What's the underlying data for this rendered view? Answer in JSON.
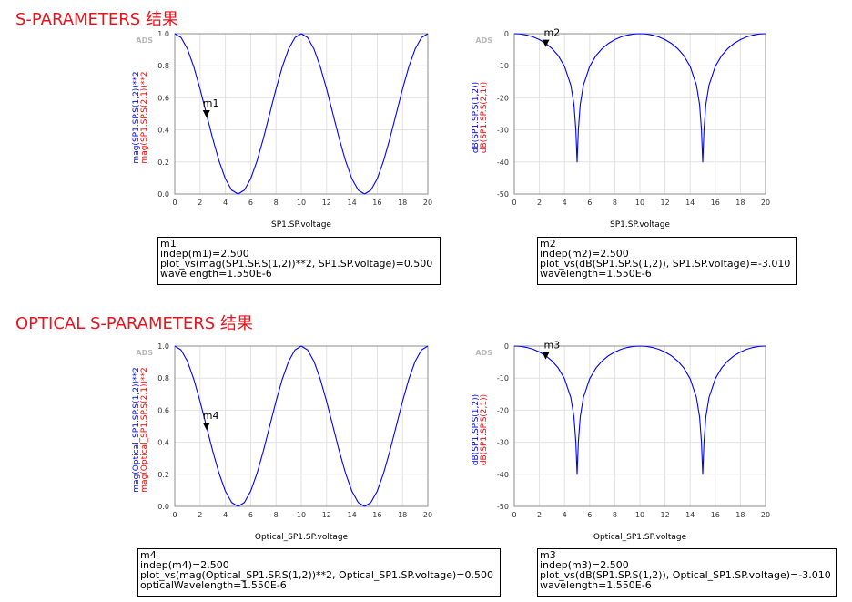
{
  "sections": [
    {
      "title": "S-PARAMETERS 结果"
    },
    {
      "title": "OPTICAL S-PARAMETERS 结果"
    }
  ],
  "colors": {
    "title": "#e8141b",
    "trace": "#0000ff",
    "ylabel_primary": "#0000ff",
    "ylabel_secondary": "#ff0000"
  },
  "chart_data": [
    {
      "type": "line",
      "watermark": "ADS",
      "xlabel": "SP1.SP.voltage",
      "ylabels": [
        "mag(SP1.SP.S(1,2))**2",
        "mag(SP1.SP.S(2,1))**2"
      ],
      "xlim": [
        0,
        20
      ],
      "ylim": [
        0,
        1
      ],
      "xticks": [
        0,
        2,
        4,
        6,
        8,
        10,
        12,
        14,
        16,
        18,
        20
      ],
      "yticks": [
        0.0,
        0.2,
        0.4,
        0.6,
        0.8,
        1.0
      ],
      "ytick_labels": [
        "0.0",
        "0.2",
        "0.4",
        "0.6",
        "0.8",
        "1.0"
      ],
      "scale": "linear",
      "grid": true,
      "x": [
        0,
        0.5,
        1,
        1.5,
        2,
        2.5,
        3,
        3.5,
        4,
        4.5,
        5,
        5.5,
        6,
        6.5,
        7,
        7.5,
        8,
        8.5,
        9,
        9.5,
        10,
        10.5,
        11,
        11.5,
        12,
        12.5,
        13,
        13.5,
        14,
        14.5,
        15,
        15.5,
        16,
        16.5,
        17,
        17.5,
        18,
        18.5,
        19,
        19.5,
        20
      ],
      "series": [
        {
          "values": [
            1,
            0.976,
            0.905,
            0.794,
            0.655,
            0.5,
            0.345,
            0.206,
            0.095,
            0.024,
            0,
            0.024,
            0.095,
            0.206,
            0.345,
            0.5,
            0.655,
            0.794,
            0.905,
            0.976,
            1,
            0.976,
            0.905,
            0.794,
            0.655,
            0.5,
            0.345,
            0.206,
            0.095,
            0.024,
            0,
            0.024,
            0.095,
            0.206,
            0.345,
            0.5,
            0.655,
            0.794,
            0.905,
            0.976,
            1
          ]
        }
      ],
      "marker": {
        "name": "m1",
        "x": 2.5,
        "y": 0.5
      }
    },
    {
      "type": "line",
      "watermark": "ADS",
      "xlabel": "SP1.SP.voltage",
      "ylabels": [
        "dB(SP1.SP.S(1,2))",
        "dB(SP1.SP.S(2,1))"
      ],
      "xlim": [
        0,
        20
      ],
      "ylim": [
        -50,
        0
      ],
      "xticks": [
        0,
        2,
        4,
        6,
        8,
        10,
        12,
        14,
        16,
        18,
        20
      ],
      "yticks": [
        -50,
        -40,
        -30,
        -20,
        -10,
        0
      ],
      "ytick_labels": [
        "-50",
        "-40",
        "-30",
        "-20",
        "-10",
        "0"
      ],
      "scale": "linear",
      "grid": true,
      "x": [
        0,
        0.5,
        1,
        1.5,
        2,
        2.5,
        3,
        3.5,
        4,
        4.5,
        4.75,
        4.9,
        5,
        5.1,
        5.25,
        5.5,
        6,
        6.5,
        7,
        7.5,
        8,
        8.5,
        9,
        9.5,
        10,
        10.5,
        11,
        11.5,
        12,
        12.5,
        13,
        13.5,
        14,
        14.5,
        14.75,
        14.9,
        15,
        15.1,
        15.25,
        15.5,
        16,
        16.5,
        17,
        17.5,
        18,
        18.5,
        19,
        19.5,
        20
      ],
      "series": [
        {
          "values": [
            0,
            -0.107,
            -0.434,
            -1.002,
            -1.841,
            -3.01,
            -4.621,
            -6.866,
            -10.21,
            -16.06,
            -22.08,
            -30.0,
            -40.0,
            -30.0,
            -22.08,
            -16.06,
            -10.21,
            -6.866,
            -4.621,
            -3.01,
            -1.841,
            -1.002,
            -0.434,
            -0.107,
            0,
            -0.107,
            -0.434,
            -1.002,
            -1.841,
            -3.01,
            -4.621,
            -6.866,
            -10.21,
            -16.06,
            -22.08,
            -30.0,
            -40.0,
            -30.0,
            -22.08,
            -16.06,
            -10.21,
            -6.866,
            -4.621,
            -3.01,
            -1.841,
            -1.002,
            -0.434,
            -0.107,
            0
          ]
        }
      ],
      "marker": {
        "name": "m2",
        "x": 2.5,
        "y": -3.01
      }
    },
    {
      "type": "line",
      "watermark": "ADS",
      "xlabel": "Optical_SP1.SP.voltage",
      "ylabels": [
        "mag(Optical_SP1.SP.S(1,2))**2",
        "mag(Optical_SP1.SP.S(2,1))**2"
      ],
      "xlim": [
        0,
        20
      ],
      "ylim": [
        0,
        1
      ],
      "xticks": [
        0,
        2,
        4,
        6,
        8,
        10,
        12,
        14,
        16,
        18,
        20
      ],
      "yticks": [
        0.0,
        0.2,
        0.4,
        0.6,
        0.8,
        1.0
      ],
      "ytick_labels": [
        "0.0",
        "0.2",
        "0.4",
        "0.6",
        "0.8",
        "1.0"
      ],
      "scale": "linear",
      "grid": true,
      "x": [
        0,
        0.5,
        1,
        1.5,
        2,
        2.5,
        3,
        3.5,
        4,
        4.5,
        5,
        5.5,
        6,
        6.5,
        7,
        7.5,
        8,
        8.5,
        9,
        9.5,
        10,
        10.5,
        11,
        11.5,
        12,
        12.5,
        13,
        13.5,
        14,
        14.5,
        15,
        15.5,
        16,
        16.5,
        17,
        17.5,
        18,
        18.5,
        19,
        19.5,
        20
      ],
      "series": [
        {
          "values": [
            1,
            0.976,
            0.905,
            0.794,
            0.655,
            0.5,
            0.345,
            0.206,
            0.095,
            0.024,
            0,
            0.024,
            0.095,
            0.206,
            0.345,
            0.5,
            0.655,
            0.794,
            0.905,
            0.976,
            1,
            0.976,
            0.905,
            0.794,
            0.655,
            0.5,
            0.345,
            0.206,
            0.095,
            0.024,
            0,
            0.024,
            0.095,
            0.206,
            0.345,
            0.5,
            0.655,
            0.794,
            0.905,
            0.976,
            1
          ]
        }
      ],
      "marker": {
        "name": "m4",
        "x": 2.5,
        "y": 0.5
      }
    },
    {
      "type": "line",
      "watermark": "ADS",
      "xlabel": "Optical_SP1.SP.voltage",
      "ylabels": [
        "dB(SP1.SP.S(1,2))",
        "dB(SP1.SP.S(2,1))"
      ],
      "xlim": [
        0,
        20
      ],
      "ylim": [
        -50,
        0
      ],
      "xticks": [
        0,
        2,
        4,
        6,
        8,
        10,
        12,
        14,
        16,
        18,
        20
      ],
      "yticks": [
        -50,
        -40,
        -30,
        -20,
        -10,
        0
      ],
      "ytick_labels": [
        "-50",
        "-40",
        "-30",
        "-20",
        "-10",
        "0"
      ],
      "scale": "linear",
      "grid": true,
      "x": [
        0,
        0.5,
        1,
        1.5,
        2,
        2.5,
        3,
        3.5,
        4,
        4.5,
        4.75,
        4.9,
        5,
        5.1,
        5.25,
        5.5,
        6,
        6.5,
        7,
        7.5,
        8,
        8.5,
        9,
        9.5,
        10,
        10.5,
        11,
        11.5,
        12,
        12.5,
        13,
        13.5,
        14,
        14.5,
        14.75,
        14.9,
        15,
        15.1,
        15.25,
        15.5,
        16,
        16.5,
        17,
        17.5,
        18,
        18.5,
        19,
        19.5,
        20
      ],
      "series": [
        {
          "values": [
            0,
            -0.107,
            -0.434,
            -1.002,
            -1.841,
            -3.01,
            -4.621,
            -6.866,
            -10.21,
            -16.06,
            -22.08,
            -30.0,
            -40.0,
            -30.0,
            -22.08,
            -16.06,
            -10.21,
            -6.866,
            -4.621,
            -3.01,
            -1.841,
            -1.002,
            -0.434,
            -0.107,
            0,
            -0.107,
            -0.434,
            -1.002,
            -1.841,
            -3.01,
            -4.621,
            -6.866,
            -10.21,
            -16.06,
            -22.08,
            -30.0,
            -40.0,
            -30.0,
            -22.08,
            -16.06,
            -10.21,
            -6.866,
            -4.621,
            -3.01,
            -1.841,
            -1.002,
            -0.434,
            -0.107,
            0
          ]
        }
      ],
      "marker": {
        "name": "m3",
        "x": 2.5,
        "y": -3.01
      }
    }
  ],
  "marker_readouts": [
    {
      "lines": [
        "m1",
        "indep(m1)=2.500",
        "plot_vs(mag(SP1.SP.S(1,2))**2, SP1.SP.voltage)=0.500",
        "wavelength=1.550E-6"
      ]
    },
    {
      "lines": [
        "m2",
        "indep(m2)=2.500",
        "plot_vs(dB(SP1.SP.S(1,2)), SP1.SP.voltage)=-3.010",
        "wavelength=1.550E-6"
      ]
    },
    {
      "lines": [
        "m4",
        "indep(m4)=2.500",
        "plot_vs(mag(Optical_SP1.SP.S(1,2))**2, Optical_SP1.SP.voltage)=0.500",
        "opticalWavelength=1.550E-6"
      ]
    },
    {
      "lines": [
        "m3",
        "indep(m3)=2.500",
        "plot_vs(dB(SP1.SP.S(1,2)), Optical_SP1.SP.voltage)=-3.010",
        "wavelength=1.550E-6"
      ]
    }
  ]
}
